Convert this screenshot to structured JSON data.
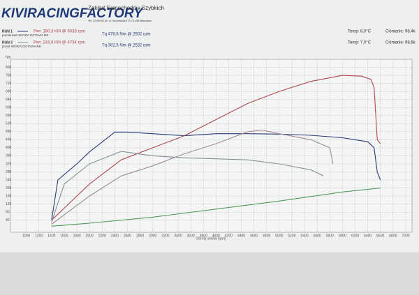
{
  "chart_data": {
    "type": "line",
    "logo": "KIVIRACINGFACTORY",
    "company": "Zakład Samochodów Szybkich",
    "address": "Tel.: 22 699 60 60, ul. Górczewska 179, 01-459 Warszawa",
    "runs": [
      {
        "label": "RUN 1",
        "power": "Pwr. 380,3 KM @ 6038 rpm",
        "car": "pomiarowe SKODA OCTAVIA RS",
        "torque": "Tq 478,6 Nm @ 2502 rpm",
        "temp": "Temp: 8,0°C",
        "pressure": "Ciśnienie: 98,4k"
      },
      {
        "label": "RUN 2",
        "power": "Pwr. 243,9 KM @ 4734 rpm",
        "car": "przed SKODA OCTAVIA RS",
        "torque": "Tq 382,5 Nm @ 2532 rpm",
        "temp": "Temp: 7,0°C",
        "pressure": "Ciśnienie: 98,6k"
      }
    ],
    "y_label": "Nm",
    "x_label": "Obroty silnika [rpm]",
    "xlim": [
      750,
      7100
    ],
    "xticks": [
      1000,
      1200,
      1400,
      1600,
      1800,
      2000,
      2200,
      2400,
      2600,
      2800,
      3000,
      3200,
      3400,
      3600,
      3800,
      4000,
      4200,
      4400,
      4600,
      4800,
      5000,
      5200,
      5400,
      5600,
      5800,
      6000,
      6200,
      6400,
      6600,
      6800,
      7000
    ],
    "ylim": [
      -20,
      840
    ],
    "yticks": [
      40,
      80,
      120,
      160,
      200,
      240,
      280,
      320,
      360,
      400,
      440,
      480,
      520,
      560,
      600,
      640,
      680,
      720,
      760,
      800
    ],
    "y2lim": [
      -10,
      420
    ],
    "grid": true,
    "series": [
      {
        "color": "#2a3a78",
        "x": [
          1400,
          1500,
          1800,
          2000,
          2400,
          2600,
          3000,
          3500,
          4000,
          4500,
          5000,
          5500,
          6000,
          6400,
          6500,
          6550,
          6600
        ],
        "values": [
          40,
          240,
          320,
          380,
          478,
          478,
          470,
          460,
          470,
          470,
          468,
          462,
          450,
          430,
          400,
          280,
          240
        ]
      },
      {
        "color": "#b0474f",
        "axis": "y2",
        "x": [
          1400,
          1600,
          2000,
          2500,
          3000,
          3500,
          4000,
          4500,
          5000,
          5500,
          6000,
          6300,
          6450,
          6500,
          6550,
          6600
        ],
        "values": [
          20,
          50,
          110,
          170,
          200,
          230,
          270,
          310,
          340,
          365,
          380,
          378,
          370,
          350,
          220,
          210
        ]
      },
      {
        "color": "#8a8e96",
        "x": [
          1400,
          1600,
          2000,
          2500,
          3000,
          3500,
          4000,
          4500,
          5000,
          5500,
          5700
        ],
        "values": [
          30,
          220,
          320,
          382,
          360,
          350,
          345,
          340,
          320,
          290,
          260
        ]
      },
      {
        "color": "#a08a98",
        "axis": "y2",
        "x": [
          1400,
          2000,
          2500,
          3000,
          3500,
          4000,
          4500,
          4734,
          5000,
          5500,
          5800,
          5850
        ],
        "values": [
          10,
          80,
          130,
          155,
          185,
          210,
          240,
          244,
          235,
          220,
          200,
          160
        ]
      },
      {
        "color": "#4f9a58",
        "x": [
          1400,
          2000,
          3000,
          4000,
          5000,
          6000,
          6600
        ],
        "values": [
          10,
          25,
          55,
          95,
          135,
          180,
          200
        ]
      }
    ]
  }
}
